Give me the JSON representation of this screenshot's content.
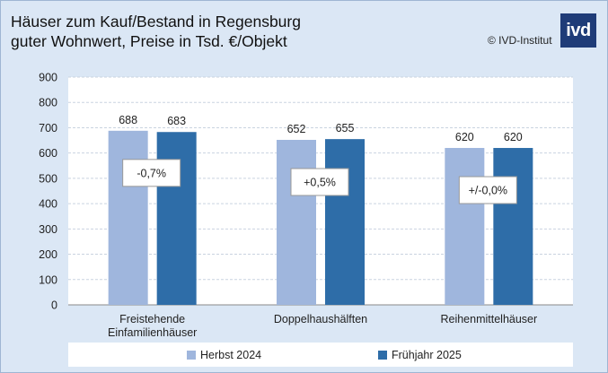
{
  "header": {
    "title_line1": "Häuser zum Kauf/Bestand in Regensburg",
    "title_line2": "guter Wohnwert, Preise in Tsd. €/Objekt",
    "copyright": "© IVD-Institut",
    "logo_text": "ivd"
  },
  "colors": {
    "background": "#dbe7f5",
    "series_herbst": "#9fb6dd",
    "series_fruehjahr": "#2e6da8",
    "logo": "#1f3c78"
  },
  "chart_data": {
    "type": "bar",
    "categories": [
      [
        "Freistehende",
        "Einfamilienhäuser"
      ],
      [
        "Doppelhaushälften"
      ],
      [
        "Reihenmittelhäuser"
      ]
    ],
    "series": [
      {
        "name": "Herbst 2024",
        "values": [
          688,
          652,
          620
        ],
        "color": "#9fb6dd"
      },
      {
        "name": "Frühjahr 2025",
        "values": [
          683,
          655,
          620
        ],
        "color": "#2e6da8"
      }
    ],
    "annotations": [
      "-0,7%",
      "+0,5%",
      "+/-0,0%"
    ],
    "ylim": [
      0,
      900
    ],
    "yticks": [
      0,
      100,
      200,
      300,
      400,
      500,
      600,
      700,
      800,
      900
    ],
    "grid": true,
    "legend_position": "bottom"
  }
}
